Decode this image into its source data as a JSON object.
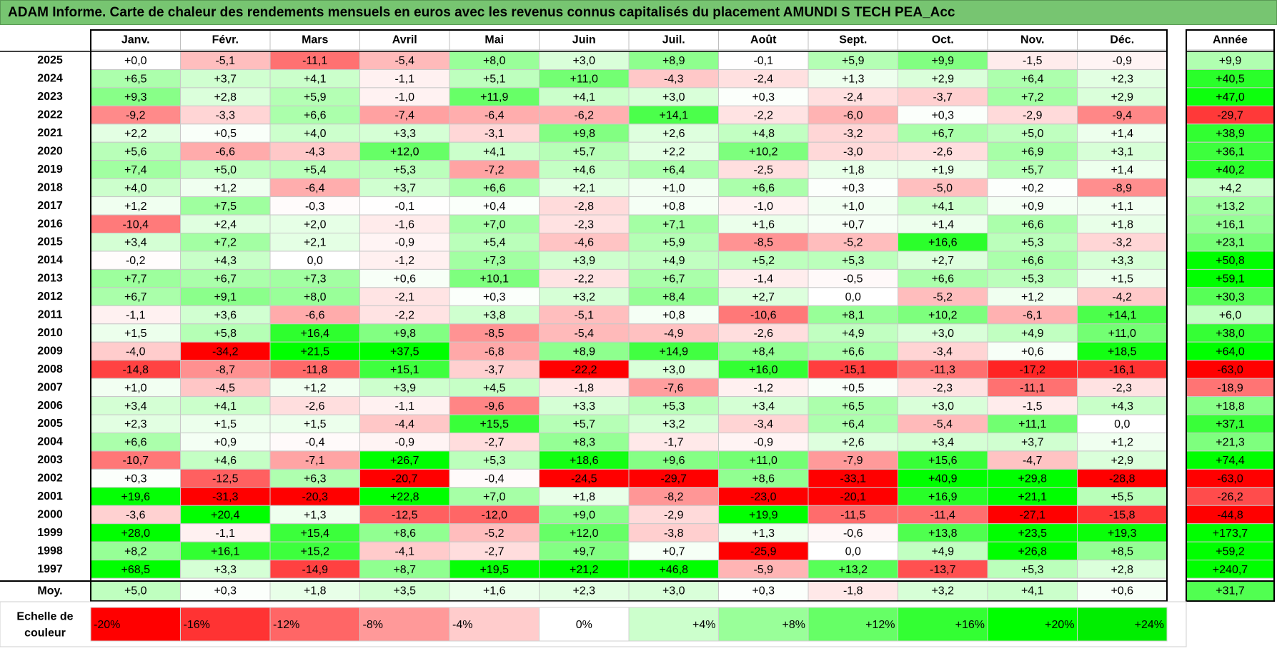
{
  "title": "ADAM Informe. Carte de chaleur des rendements mensuels en euros avec les revenus connus capitalisés du placement AMUNDI S TECH PEA_Acc",
  "chart_data": {
    "type": "heatmap",
    "months": [
      "Janv.",
      "Févr.",
      "Mars",
      "Avril",
      "Mai",
      "Juin",
      "Juil.",
      "Août",
      "Sept.",
      "Oct.",
      "Nov.",
      "Déc."
    ],
    "year_header": "Année",
    "rows": [
      {
        "year": "2025",
        "values": [
          "+0,0",
          "-5,1",
          "-11,1",
          "-5,4",
          "+8,0",
          "+3,0",
          "+8,9",
          "-0,1",
          "+5,9",
          "+9,9",
          "-1,5",
          "-0,9"
        ],
        "annual": "+9,9"
      },
      {
        "year": "2024",
        "values": [
          "+6,5",
          "+3,7",
          "+4,1",
          "-1,1",
          "+5,1",
          "+11,0",
          "-4,3",
          "-2,4",
          "+1,3",
          "+2,9",
          "+6,4",
          "+2,3"
        ],
        "annual": "+40,5"
      },
      {
        "year": "2023",
        "values": [
          "+9,3",
          "+2,8",
          "+5,9",
          "-1,0",
          "+11,9",
          "+4,1",
          "+3,0",
          "+0,3",
          "-2,4",
          "-3,7",
          "+7,2",
          "+2,9"
        ],
        "annual": "+47,0"
      },
      {
        "year": "2022",
        "values": [
          "-9,2",
          "-3,3",
          "+6,6",
          "-7,4",
          "-6,4",
          "-6,2",
          "+14,1",
          "-2,2",
          "-6,0",
          "+0,3",
          "-2,9",
          "-9,4"
        ],
        "annual": "-29,7"
      },
      {
        "year": "2021",
        "values": [
          "+2,2",
          "+0,5",
          "+4,0",
          "+3,3",
          "-3,1",
          "+9,8",
          "+2,6",
          "+4,8",
          "-3,2",
          "+6,7",
          "+5,0",
          "+1,4"
        ],
        "annual": "+38,9"
      },
      {
        "year": "2020",
        "values": [
          "+5,6",
          "-6,6",
          "-4,3",
          "+12,0",
          "+4,1",
          "+5,7",
          "+2,2",
          "+10,2",
          "-3,0",
          "-2,6",
          "+6,9",
          "+3,1"
        ],
        "annual": "+36,1"
      },
      {
        "year": "2019",
        "values": [
          "+7,4",
          "+5,0",
          "+5,4",
          "+5,3",
          "-7,2",
          "+4,6",
          "+6,4",
          "-2,5",
          "+1,8",
          "+1,9",
          "+5,7",
          "+1,4"
        ],
        "annual": "+40,2"
      },
      {
        "year": "2018",
        "values": [
          "+4,0",
          "+1,2",
          "-6,4",
          "+3,7",
          "+6,6",
          "+2,1",
          "+1,0",
          "+6,6",
          "+0,3",
          "-5,0",
          "+0,2",
          "-8,9"
        ],
        "annual": "+4,2"
      },
      {
        "year": "2017",
        "values": [
          "+1,2",
          "+7,5",
          "-0,3",
          "-0,1",
          "+0,4",
          "-2,8",
          "+0,8",
          "-1,0",
          "+1,0",
          "+4,1",
          "+0,9",
          "+1,1"
        ],
        "annual": "+13,2"
      },
      {
        "year": "2016",
        "values": [
          "-10,4",
          "+2,4",
          "+2,0",
          "-1,6",
          "+7,0",
          "-2,3",
          "+7,1",
          "+1,6",
          "+0,7",
          "+1,4",
          "+6,6",
          "+1,8"
        ],
        "annual": "+16,1"
      },
      {
        "year": "2015",
        "values": [
          "+3,4",
          "+7,2",
          "+2,1",
          "-0,9",
          "+5,4",
          "-4,6",
          "+5,9",
          "-8,5",
          "-5,2",
          "+16,6",
          "+5,3",
          "-3,2"
        ],
        "annual": "+23,1"
      },
      {
        "year": "2014",
        "values": [
          "-0,2",
          "+4,3",
          "0,0",
          "-1,2",
          "+7,3",
          "+3,9",
          "+4,9",
          "+5,2",
          "+5,3",
          "+2,7",
          "+6,6",
          "+3,3"
        ],
        "annual": "+50,8"
      },
      {
        "year": "2013",
        "values": [
          "+7,7",
          "+6,7",
          "+7,3",
          "+0,6",
          "+10,1",
          "-2,2",
          "+6,7",
          "-1,4",
          "-0,5",
          "+6,6",
          "+5,3",
          "+1,5"
        ],
        "annual": "+59,1"
      },
      {
        "year": "2012",
        "values": [
          "+6,7",
          "+9,1",
          "+8,0",
          "-2,1",
          "+0,3",
          "+3,2",
          "+8,4",
          "+2,7",
          "0,0",
          "-5,2",
          "+1,2",
          "-4,2"
        ],
        "annual": "+30,3"
      },
      {
        "year": "2011",
        "values": [
          "-1,1",
          "+3,6",
          "-6,6",
          "-2,2",
          "+3,8",
          "-5,1",
          "+0,8",
          "-10,6",
          "+8,1",
          "+10,2",
          "-6,1",
          "+14,1"
        ],
        "annual": "+6,0"
      },
      {
        "year": "2010",
        "values": [
          "+1,5",
          "+5,8",
          "+16,4",
          "+9,8",
          "-8,5",
          "-5,4",
          "-4,9",
          "-2,6",
          "+4,9",
          "+3,0",
          "+4,9",
          "+11,0"
        ],
        "annual": "+38,0"
      },
      {
        "year": "2009",
        "values": [
          "-4,0",
          "-34,2",
          "+21,5",
          "+37,5",
          "-6,8",
          "+8,9",
          "+14,9",
          "+8,4",
          "+6,6",
          "-3,4",
          "+0,6",
          "+18,5"
        ],
        "annual": "+64,0"
      },
      {
        "year": "2008",
        "values": [
          "-14,8",
          "-8,7",
          "-11,8",
          "+15,1",
          "-3,7",
          "-22,2",
          "+3,0",
          "+16,0",
          "-15,1",
          "-11,3",
          "-17,2",
          "-16,1"
        ],
        "annual": "-63,0"
      },
      {
        "year": "2007",
        "values": [
          "+1,0",
          "-4,5",
          "+1,2",
          "+3,9",
          "+4,5",
          "-1,8",
          "-7,6",
          "-1,2",
          "+0,5",
          "-2,3",
          "-11,1",
          "-2,3"
        ],
        "annual": "-18,9"
      },
      {
        "year": "2006",
        "values": [
          "+3,4",
          "+4,1",
          "-2,6",
          "-1,1",
          "-9,6",
          "+3,3",
          "+5,3",
          "+3,4",
          "+6,5",
          "+3,0",
          "-1,5",
          "+4,3"
        ],
        "annual": "+18,8"
      },
      {
        "year": "2005",
        "values": [
          "+2,3",
          "+1,5",
          "+1,5",
          "-4,4",
          "+15,5",
          "+5,7",
          "+3,2",
          "-3,4",
          "+6,4",
          "-5,4",
          "+11,1",
          "0,0"
        ],
        "annual": "+37,1"
      },
      {
        "year": "2004",
        "values": [
          "+6,6",
          "+0,9",
          "-0,4",
          "-0,9",
          "-2,7",
          "+8,3",
          "-1,7",
          "-0,9",
          "+2,6",
          "+3,4",
          "+3,7",
          "+1,2"
        ],
        "annual": "+21,3"
      },
      {
        "year": "2003",
        "values": [
          "-10,7",
          "+4,6",
          "-7,1",
          "+26,7",
          "+5,3",
          "+18,6",
          "+9,6",
          "+11,0",
          "-7,9",
          "+15,6",
          "-4,7",
          "+2,9"
        ],
        "annual": "+74,4"
      },
      {
        "year": "2002",
        "values": [
          "+0,3",
          "-12,5",
          "+6,3",
          "-20,7",
          "-0,4",
          "-24,5",
          "-29,7",
          "+8,6",
          "-33,1",
          "+40,9",
          "+29,8",
          "-28,8"
        ],
        "annual": "-63,0"
      },
      {
        "year": "2001",
        "values": [
          "+19,6",
          "-31,3",
          "-20,3",
          "+22,8",
          "+7,0",
          "+1,8",
          "-8,2",
          "-23,0",
          "-20,1",
          "+16,9",
          "+21,1",
          "+5,5"
        ],
        "annual": "-26,2"
      },
      {
        "year": "2000",
        "values": [
          "-3,6",
          "+20,4",
          "+1,3",
          "-12,5",
          "-12,0",
          "+9,0",
          "-2,9",
          "+19,9",
          "-11,5",
          "-11,4",
          "-27,1",
          "-15,8"
        ],
        "annual": "-44,8"
      },
      {
        "year": "1999",
        "values": [
          "+28,0",
          "-1,1",
          "+15,4",
          "+8,6",
          "-5,2",
          "+12,0",
          "-3,8",
          "+1,3",
          "-0,6",
          "+13,8",
          "+23,5",
          "+19,3"
        ],
        "annual": "+173,7"
      },
      {
        "year": "1998",
        "values": [
          "+8,2",
          "+16,1",
          "+15,2",
          "-4,1",
          "-2,7",
          "+9,7",
          "+0,7",
          "-25,9",
          "0,0",
          "+4,9",
          "+26,8",
          "+8,5"
        ],
        "annual": "+59,2"
      },
      {
        "year": "1997",
        "values": [
          "+68,5",
          "+3,3",
          "-14,9",
          "+8,7",
          "+19,5",
          "+21,2",
          "+46,8",
          "-5,9",
          "+13,2",
          "-13,7",
          "+5,3",
          "+2,8"
        ],
        "annual": "+240,7"
      }
    ],
    "average": {
      "label": "Moy.",
      "values": [
        "+5,0",
        "+0,3",
        "+1,8",
        "+3,5",
        "+1,6",
        "+2,3",
        "+3,0",
        "+0,3",
        "-1,8",
        "+3,2",
        "+4,1",
        "+0,6"
      ],
      "annual": "+31,7"
    },
    "scale": {
      "label_line1": "Echelle de",
      "label_line2": "couleur",
      "stops": [
        {
          "label": "-20%",
          "value": -20,
          "color": "#ff0000"
        },
        {
          "label": "-16%",
          "value": -16,
          "color": "#ff3333"
        },
        {
          "label": "-12%",
          "value": -12,
          "color": "#ff6666"
        },
        {
          "label": "-8%",
          "value": -8,
          "color": "#ff9999"
        },
        {
          "label": "-4%",
          "value": -4,
          "color": "#ffcccc"
        },
        {
          "label": "0%",
          "value": 0,
          "color": "#ffffff"
        },
        {
          "label": "+4%",
          "value": 4,
          "color": "#ccffcc"
        },
        {
          "label": "+8%",
          "value": 8,
          "color": "#99ff99"
        },
        {
          "label": "+12%",
          "value": 12,
          "color": "#66ff66"
        },
        {
          "label": "+16%",
          "value": 16,
          "color": "#33ff33"
        },
        {
          "label": "+20%",
          "value": 20,
          "color": "#00ff00"
        },
        {
          "label": "+24%",
          "value": 24,
          "color": "#00ee00"
        }
      ]
    }
  }
}
